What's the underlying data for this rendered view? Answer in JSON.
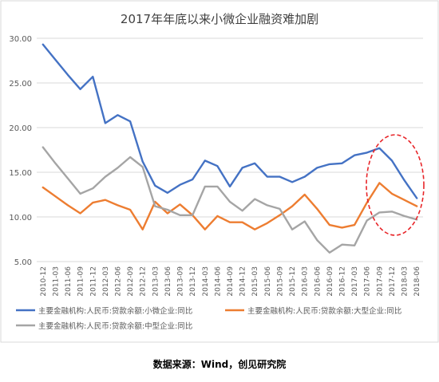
{
  "chart_data": {
    "type": "line",
    "title": "2017年年底以来小微企业融资难加剧",
    "xlabel": "",
    "ylabel": "",
    "ylim": [
      5,
      30
    ],
    "yticks": [
      "5.00",
      "10.00",
      "15.00",
      "20.00",
      "25.00",
      "30.00"
    ],
    "grid": "horizontal",
    "legend_position": "bottom",
    "categories": [
      "2010-12",
      "2011-03",
      "2011-06",
      "2011-09",
      "2011-12",
      "2012-03",
      "2012-06",
      "2012-09",
      "2012-12",
      "2013-03",
      "2013-06",
      "2013-09",
      "2013-12",
      "2014-03",
      "2014-06",
      "2014-09",
      "2014-12",
      "2015-03",
      "2015-06",
      "2015-09",
      "2015-12",
      "2016-03",
      "2016-06",
      "2016-09",
      "2016-12",
      "2017-03",
      "2017-06",
      "2017-09",
      "2017-12",
      "2018-03",
      "2018-06"
    ],
    "series": [
      {
        "name": "主要金融机构:人民币:贷款余额:小微企业:同比",
        "color": "#4472C4",
        "values": [
          29.3,
          27.6,
          25.9,
          24.3,
          25.7,
          20.5,
          21.4,
          20.7,
          16.2,
          13.5,
          12.7,
          13.6,
          14.2,
          16.3,
          15.7,
          13.4,
          15.5,
          16.0,
          14.5,
          14.5,
          13.9,
          14.5,
          15.5,
          15.9,
          16.0,
          16.9,
          17.2,
          17.7,
          16.3,
          14.1,
          12.1
        ]
      },
      {
        "name": "主要金融机构:人民币:贷款余额:大型企业:同比",
        "color": "#ED7D31",
        "values": [
          13.3,
          12.3,
          11.3,
          10.4,
          11.6,
          11.9,
          11.3,
          10.8,
          8.6,
          11.7,
          10.4,
          11.4,
          10.2,
          8.6,
          10.1,
          9.4,
          9.4,
          8.6,
          9.3,
          10.2,
          11.2,
          12.5,
          10.9,
          9.1,
          8.8,
          9.1,
          11.6,
          13.8,
          12.6,
          11.9,
          11.2
        ]
      },
      {
        "name": "主要金融机构:人民币:贷款余额:中型企业:同比",
        "color": "#A5A5A5",
        "values": [
          17.8,
          16.0,
          14.3,
          12.6,
          13.2,
          14.5,
          15.5,
          16.7,
          15.6,
          11.2,
          10.8,
          10.2,
          10.2,
          13.4,
          13.4,
          11.7,
          10.7,
          12.0,
          11.3,
          10.9,
          8.6,
          9.5,
          7.4,
          6.0,
          6.9,
          6.8,
          9.6,
          10.5,
          10.6,
          10.1,
          9.7
        ]
      }
    ]
  },
  "highlight": {
    "color": "#E8262A"
  },
  "source_text": "数据来源：Wind，创见研究院"
}
